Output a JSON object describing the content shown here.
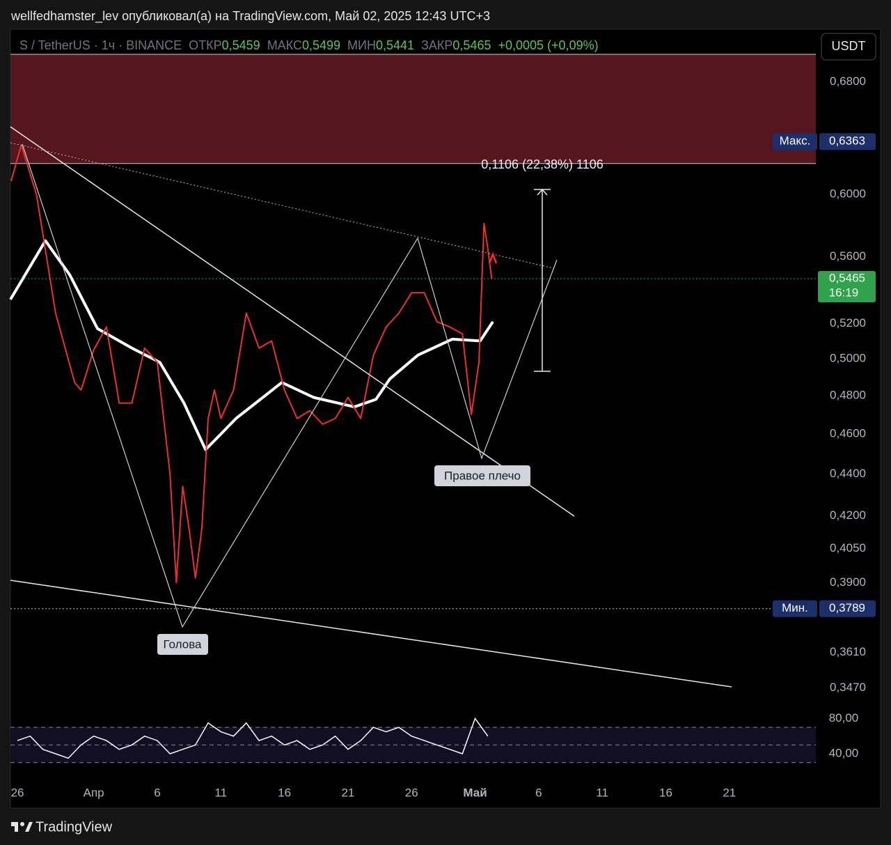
{
  "header": {
    "attribution": "wellfedhamster_lev опубликовал(а) на TradingView.com, Май 02, 2025 12:43 UTC+3",
    "open_label": "ОТКР",
    "open": "0,5459",
    "high_label": "МАКС",
    "high": "0,5499",
    "low_label": "МИН",
    "low": "0,5441",
    "close_label": "ЗАКР",
    "close": "0,5465",
    "change": "+0,0005 (+0,09%)"
  },
  "footer": {
    "brand": "TradingView"
  },
  "chart_data": {
    "type": "line",
    "currency": "USDT",
    "ylog": true,
    "grid": false,
    "xlim": [
      -0.55,
      62.8
    ],
    "ylim": [
      0.341,
      0.701
    ],
    "yticks": [
      {
        "value": 0.68,
        "label": "0,6800"
      },
      {
        "value": 0.6,
        "label": "0,6000"
      },
      {
        "value": 0.56,
        "label": "0,5600"
      },
      {
        "value": 0.52,
        "label": "0,5200"
      },
      {
        "value": 0.5,
        "label": "0,5000"
      },
      {
        "value": 0.48,
        "label": "0,4800"
      },
      {
        "value": 0.46,
        "label": "0,4600"
      },
      {
        "value": 0.44,
        "label": "0,4400"
      },
      {
        "value": 0.42,
        "label": "0,4200"
      },
      {
        "value": 0.405,
        "label": "0,4050"
      },
      {
        "value": 0.39,
        "label": "0,3900"
      },
      {
        "value": 0.361,
        "label": "0,3610"
      },
      {
        "value": 0.347,
        "label": "0,3470"
      }
    ],
    "xticks": [
      {
        "value": 0,
        "label": "26"
      },
      {
        "value": 6,
        "label": "Апр"
      },
      {
        "value": 11,
        "label": "6"
      },
      {
        "value": 16,
        "label": "11"
      },
      {
        "value": 21,
        "label": "16"
      },
      {
        "value": 26,
        "label": "21"
      },
      {
        "value": 31,
        "label": "26"
      },
      {
        "value": 36,
        "label": "Май"
      },
      {
        "value": 41,
        "label": "6"
      },
      {
        "value": 46,
        "label": "11"
      },
      {
        "value": 51,
        "label": "16"
      },
      {
        "value": 56,
        "label": "21"
      }
    ],
    "resistance_zone": [
      0.621,
      0.701
    ],
    "series": [
      {
        "name": "S / TetherUS · 1ч · BINANCE",
        "color": "#e8322b",
        "x": [
          -0.5,
          0.3,
          1.5,
          3,
          4.5,
          5,
          6,
          7,
          8,
          9,
          10,
          11,
          12,
          12.5,
          13,
          13.5,
          14,
          14.5,
          15,
          15.5,
          16,
          17,
          18,
          19,
          20,
          21,
          22,
          23,
          24,
          25,
          26,
          27,
          28,
          29,
          30,
          31,
          32,
          33,
          34,
          35,
          35.7,
          36.3,
          36.7,
          37,
          37.3
        ],
        "values": [
          0.609,
          0.634,
          0.6,
          0.526,
          0.487,
          0.483,
          0.505,
          0.518,
          0.476,
          0.476,
          0.506,
          0.498,
          0.44,
          0.39,
          0.434,
          0.414,
          0.392,
          0.414,
          0.468,
          0.483,
          0.468,
          0.483,
          0.526,
          0.506,
          0.51,
          0.483,
          0.468,
          0.472,
          0.465,
          0.468,
          0.479,
          0.468,
          0.502,
          0.518,
          0.526,
          0.538,
          0.538,
          0.521,
          0.518,
          0.514,
          0.47,
          0.498,
          0.581,
          0.565,
          0.5465
        ]
      },
      {
        "color": "#ffffff",
        "x": [
          -0.55,
          2.2,
          4.1,
          6.3,
          9.0,
          11.2,
          13.1,
          14.8,
          17.2,
          20.8,
          23.3,
          26.5,
          28.2,
          29.3,
          31.5,
          34.2,
          36.4,
          37.4
        ],
        "values": [
          0.534,
          0.57,
          0.549,
          0.517,
          0.506,
          0.498,
          0.476,
          0.452,
          0.468,
          0.487,
          0.479,
          0.474,
          0.478,
          0.489,
          0.502,
          0.511,
          0.51,
          0.521
        ]
      }
    ],
    "price_label": {
      "value": 0.5465,
      "label": "0,5465",
      "countdown": "16:19",
      "color": "#31a24c"
    },
    "max_marker": {
      "title": "Макс.",
      "value": 0.6363,
      "label": "0,6363"
    },
    "min_marker": {
      "title": "Мин.",
      "value": 0.3789,
      "label": "0,3789"
    },
    "measurement": "0,1106 (22,38%) 1106",
    "annotations": [
      "Голова",
      "Правое плечо"
    ],
    "oscillator": {
      "ylim": [
        10,
        93
      ],
      "yticks": [
        {
          "value": 80,
          "label": "80,00"
        },
        {
          "value": 40,
          "label": "40,00"
        }
      ],
      "levels": [
        70,
        50,
        30
      ],
      "color": "#ffffff",
      "x": [
        0,
        1,
        2,
        3,
        4,
        5,
        6,
        7,
        8,
        9,
        10,
        11,
        12,
        13,
        14,
        15,
        16,
        17,
        18,
        19,
        20,
        21,
        22,
        23,
        24,
        25,
        26,
        27,
        28,
        29,
        30,
        31,
        32,
        33,
        34,
        35,
        36,
        37
      ],
      "values": [
        55,
        60,
        45,
        40,
        35,
        50,
        60,
        55,
        45,
        50,
        60,
        55,
        40,
        45,
        50,
        75,
        65,
        60,
        75,
        55,
        60,
        50,
        55,
        45,
        50,
        60,
        45,
        55,
        70,
        65,
        70,
        60,
        55,
        50,
        45,
        40,
        80,
        60
      ]
    }
  }
}
